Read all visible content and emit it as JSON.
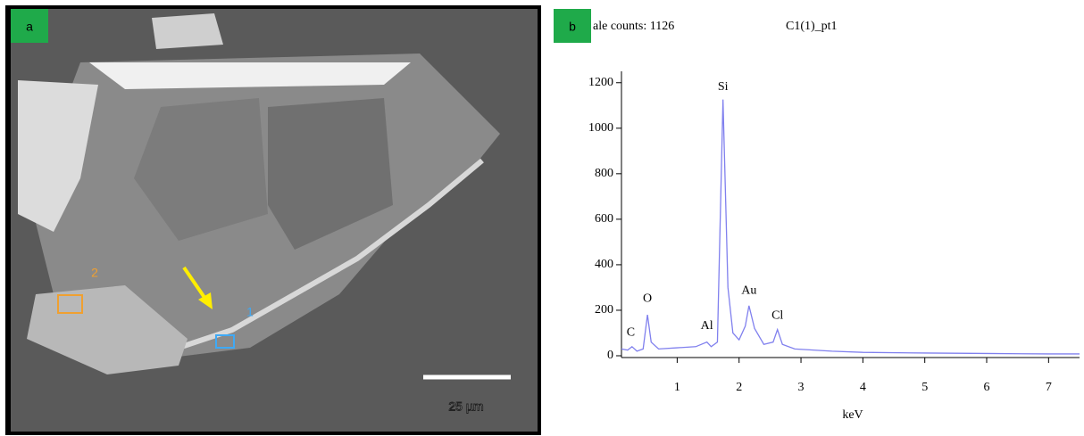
{
  "panel_a": {
    "label": "a",
    "scale_bar": "25 µm",
    "markers": [
      {
        "label": "1"
      },
      {
        "label": "2"
      }
    ]
  },
  "panel_b_label": "b",
  "chart_data": {
    "type": "line",
    "title": "C1(1)_pt1",
    "subtitle": "ale counts: 1126",
    "x_label": "keV",
    "x": [
      0.1,
      0.2,
      0.27,
      0.35,
      0.45,
      0.52,
      0.58,
      0.7,
      1.0,
      1.3,
      1.48,
      1.55,
      1.65,
      1.74,
      1.82,
      1.9,
      2.0,
      2.1,
      2.16,
      2.25,
      2.4,
      2.55,
      2.62,
      2.7,
      2.9,
      3.5,
      4.0,
      5.0,
      6.0,
      7.0,
      7.5
    ],
    "series": [
      {
        "name": "spectrum",
        "color": "#8080ee",
        "values": [
          30,
          25,
          40,
          20,
          30,
          180,
          60,
          30,
          35,
          40,
          60,
          40,
          60,
          1126,
          300,
          100,
          70,
          130,
          220,
          120,
          50,
          60,
          115,
          50,
          30,
          20,
          15,
          12,
          10,
          8,
          8
        ]
      }
    ],
    "annotations": [
      {
        "text": "C",
        "x": 0.25,
        "y": 100
      },
      {
        "text": "O",
        "x": 0.52,
        "y": 250
      },
      {
        "text": "Al",
        "x": 1.48,
        "y": 130
      },
      {
        "text": "Si",
        "x": 1.74,
        "y": 1180
      },
      {
        "text": "Au",
        "x": 2.16,
        "y": 285
      },
      {
        "text": "Cl",
        "x": 2.62,
        "y": 175
      }
    ],
    "xlim": [
      0.1,
      7.5
    ],
    "ylim": [
      0,
      1250
    ],
    "xticks": [
      1,
      2,
      3,
      4,
      5,
      6,
      7
    ],
    "yticks": [
      0,
      200,
      400,
      600,
      800,
      1000,
      1200
    ]
  }
}
